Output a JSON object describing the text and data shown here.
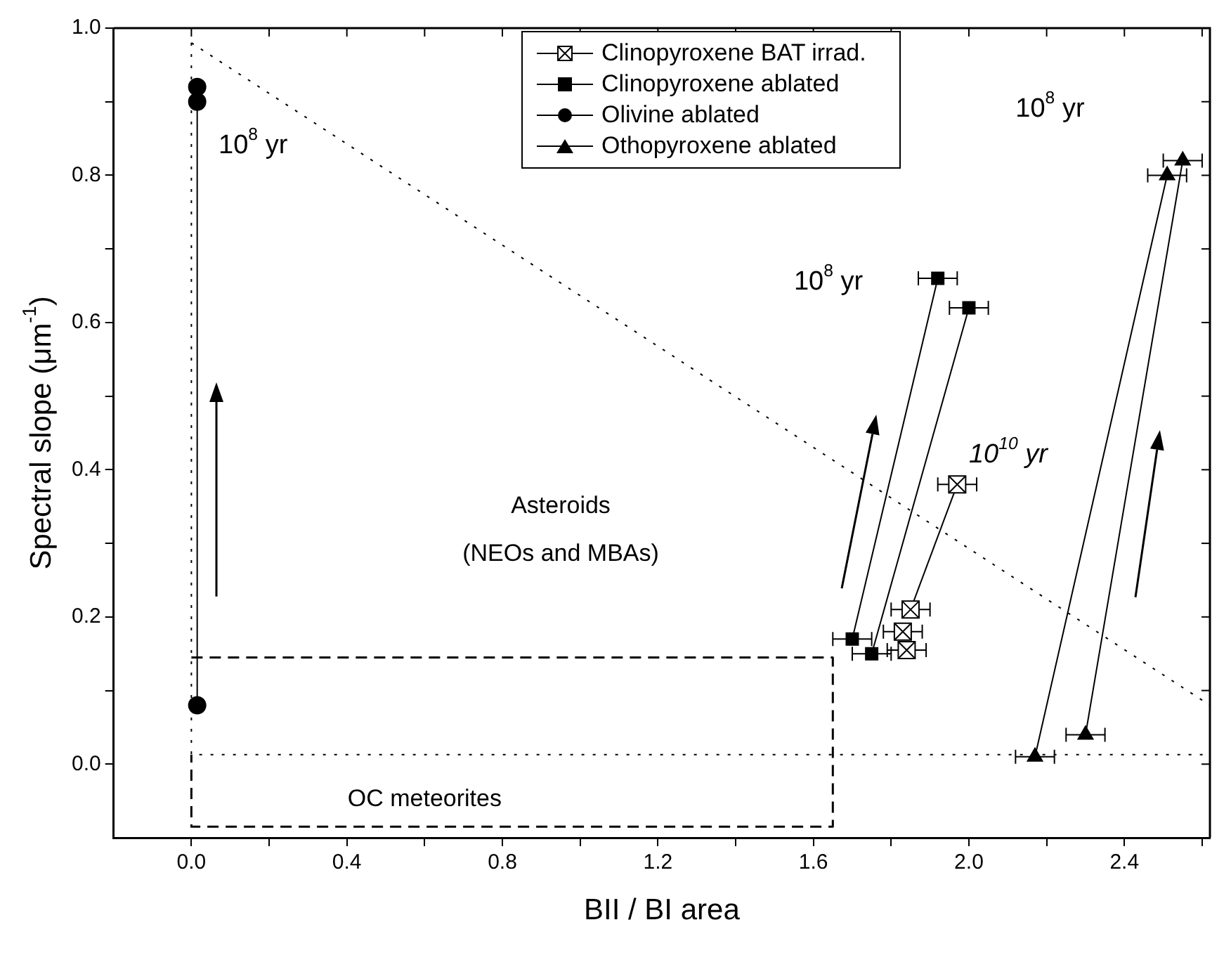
{
  "chart_data": {
    "type": "line",
    "xlabel": "BII / BI area",
    "ylabel": "Spectral slope (μm$^{-1}$)",
    "xlim": [
      -0.2,
      2.62
    ],
    "ylim": [
      -0.1,
      1.0
    ],
    "xticks": [
      {
        "value": 0,
        "label": "0.0"
      },
      {
        "value": 0.2,
        "label": null
      },
      {
        "value": 0.4,
        "label": "0.4"
      },
      {
        "value": 0.6,
        "label": null
      },
      {
        "value": 0.8,
        "label": "0.8"
      },
      {
        "value": 1.0,
        "label": null
      },
      {
        "value": 1.2,
        "label": "1.2"
      },
      {
        "value": 1.4,
        "label": null
      },
      {
        "value": 1.6,
        "label": "1.6"
      },
      {
        "value": 1.8,
        "label": null
      },
      {
        "value": 2.0,
        "label": "2.0"
      },
      {
        "value": 2.2,
        "label": null
      },
      {
        "value": 2.4,
        "label": "2.4"
      },
      {
        "value": 2.6,
        "label": null
      }
    ],
    "yticks": [
      {
        "value": 0,
        "label": "0.0"
      },
      {
        "value": 0.1,
        "label": null
      },
      {
        "value": 0.2,
        "label": "0.2"
      },
      {
        "value": 0.3,
        "label": null
      },
      {
        "value": 0.4,
        "label": "0.4"
      },
      {
        "value": 0.5,
        "label": null
      },
      {
        "value": 0.6,
        "label": "0.6"
      },
      {
        "value": 0.7,
        "label": null
      },
      {
        "value": 0.8,
        "label": "0.8"
      },
      {
        "value": 0.9,
        "label": null
      },
      {
        "value": 1.0,
        "label": "1.0"
      }
    ],
    "grid": false,
    "legend": "top right",
    "series": [
      {
        "name": "Clinopyroxene BAT irrad.",
        "color": "#000000",
        "marker": "square",
        "x": [
          1.97,
          1.85,
          null,
          1.83,
          null,
          1.84
        ],
        "values": [
          0.38,
          0.21,
          null,
          0.18,
          null,
          0.155
        ],
        "xerrors": [
          0.05,
          0.05,
          null,
          0.05,
          null,
          0.05
        ]
      },
      {
        "name": "Clinopyroxene ablated",
        "color": "#000000",
        "marker": "square",
        "x": [
          1.92,
          1.7,
          null,
          2.0,
          1.75
        ],
        "values": [
          0.66,
          0.17,
          null,
          0.62,
          0.15
        ],
        "xerrors": [
          0.05,
          0.05,
          null,
          0.05,
          0.05
        ]
      },
      {
        "name": "Olivine ablated",
        "color": "#000000",
        "marker": "circle",
        "x": [
          0.015,
          0.015,
          0.015
        ],
        "values": [
          0.92,
          0.9,
          0.08
        ]
      },
      {
        "name": "Othopyroxene ablated",
        "color": "#000000",
        "marker": "triangle",
        "x": [
          2.51,
          2.17,
          null,
          2.55,
          2.3
        ],
        "values": [
          0.8,
          0.01,
          null,
          0.82,
          0.04
        ],
        "xerrors": [
          0.05,
          0.05,
          null,
          0.05,
          0.05
        ]
      },
      {
        "color": "#000000",
        "marker": "none",
        "line_style": "dotted",
        "x": [
          0,
          2.62
        ],
        "values": [
          0.98,
          0.08
        ]
      },
      {
        "color": "#000000",
        "marker": "none",
        "line_style": "dotted",
        "x": [
          0,
          0,
          2.62
        ],
        "values": [
          0.98,
          0.013,
          0.013
        ]
      },
      {
        "color": "#000000",
        "marker": "none",
        "line_style": "dashed",
        "x": [
          0,
          1.65,
          1.65,
          0,
          0
        ],
        "values": [
          0.145,
          0.145,
          -0.085,
          -0.085,
          0.013
        ]
      }
    ],
    "annotations": [
      "10$^{8}$ yr",
      "10$^{8}$ yr",
      "10$^{8}$ yr",
      "10$^{10}$ yr",
      "Asteroids",
      "(NEOs and MBAs)",
      "OC meteorites"
    ]
  }
}
